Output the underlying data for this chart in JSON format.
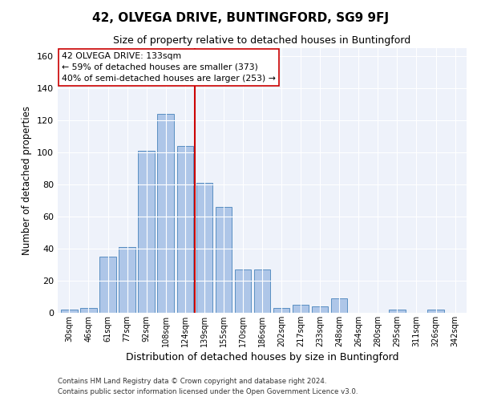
{
  "title": "42, OLVEGA DRIVE, BUNTINGFORD, SG9 9FJ",
  "subtitle": "Size of property relative to detached houses in Buntingford",
  "xlabel": "Distribution of detached houses by size in Buntingford",
  "ylabel": "Number of detached properties",
  "categories": [
    "30sqm",
    "46sqm",
    "61sqm",
    "77sqm",
    "92sqm",
    "108sqm",
    "124sqm",
    "139sqm",
    "155sqm",
    "170sqm",
    "186sqm",
    "202sqm",
    "217sqm",
    "233sqm",
    "248sqm",
    "264sqm",
    "280sqm",
    "295sqm",
    "311sqm",
    "326sqm",
    "342sqm"
  ],
  "values": [
    2,
    3,
    35,
    41,
    101,
    124,
    104,
    81,
    66,
    27,
    27,
    3,
    5,
    4,
    9,
    0,
    0,
    2,
    0,
    2,
    0
  ],
  "bar_color": "#aec6e8",
  "bar_edge_color": "#5a8fc2",
  "vline_color": "#cc0000",
  "vline_pos": 6.5,
  "annotation_text": "42 OLVEGA DRIVE: 133sqm\n← 59% of detached houses are smaller (373)\n40% of semi-detached houses are larger (253) →",
  "annotation_box_color": "#ffffff",
  "annotation_box_edge": "#cc0000",
  "ylim": [
    0,
    165
  ],
  "yticks": [
    0,
    20,
    40,
    60,
    80,
    100,
    120,
    140,
    160
  ],
  "bg_color": "#eef2fa",
  "footer1": "Contains HM Land Registry data © Crown copyright and database right 2024.",
  "footer2": "Contains public sector information licensed under the Open Government Licence v3.0."
}
